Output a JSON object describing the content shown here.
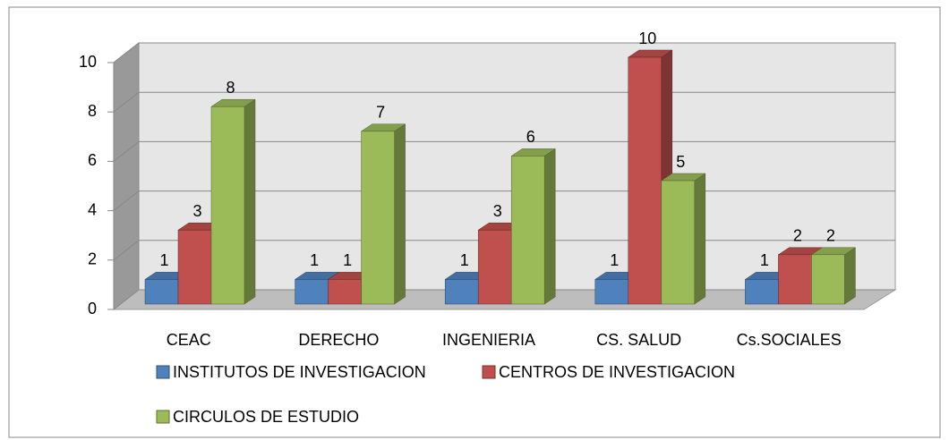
{
  "chart_data": {
    "type": "bar3d",
    "categories": [
      "CEAC",
      "DERECHO",
      "INGENIERIA",
      "CS. SALUD",
      "Cs.SOCIALES"
    ],
    "series": [
      {
        "name": "INSTITUTOS DE INVESTIGACION",
        "color": "#4f81bd",
        "values": [
          1,
          1,
          1,
          1,
          1
        ]
      },
      {
        "name": "CENTROS DE INVESTIGACION",
        "color": "#c0504d",
        "values": [
          3,
          1,
          3,
          10,
          2
        ]
      },
      {
        "name": "CIRCULOS DE  ESTUDIO",
        "color": "#9bbb59",
        "values": [
          8,
          7,
          6,
          5,
          2
        ]
      }
    ],
    "ylim": [
      0,
      10
    ],
    "yticks": [
      0,
      2,
      4,
      6,
      8,
      10
    ],
    "grid": true,
    "legend": "bottom"
  }
}
